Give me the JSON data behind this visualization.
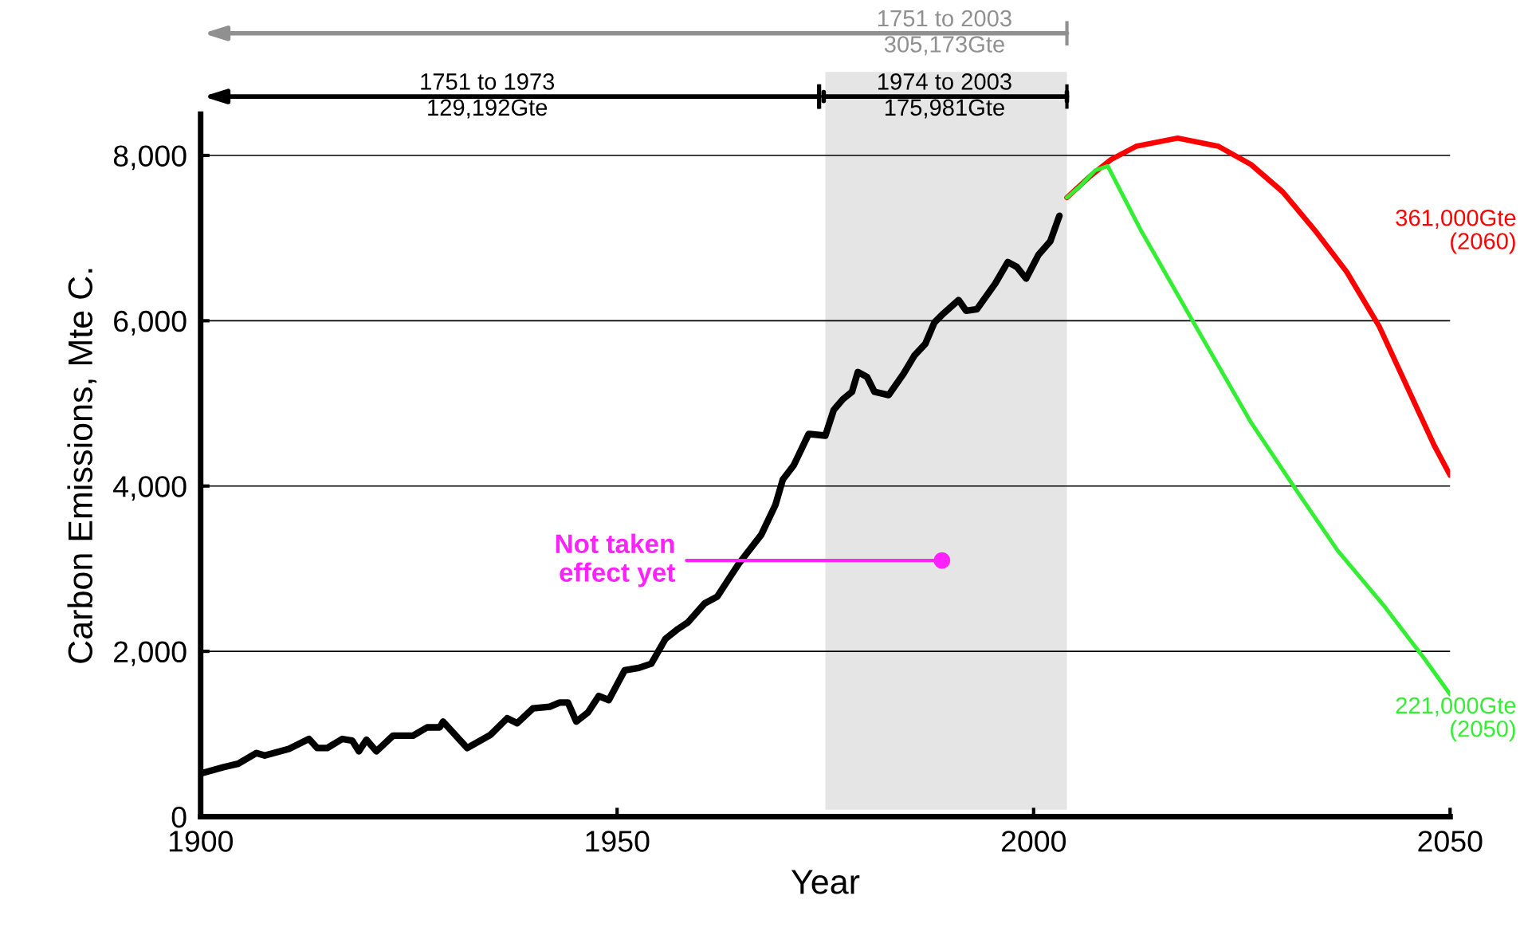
{
  "chart_data": {
    "type": "line",
    "xlabel": "Year",
    "ylabel": "Carbon Emissions, Mte C.",
    "xlim": [
      1900,
      2050
    ],
    "xticks": [
      1900,
      1950,
      2000,
      2050
    ],
    "ylim": [
      0,
      8500
    ],
    "yticks": [
      0,
      {
        "value": 2000,
        "label": "2,000"
      },
      {
        "value": 4000,
        "label": "4,000"
      },
      {
        "value": 6000,
        "label": "6,000"
      },
      {
        "value": 8000,
        "label": "8,000"
      }
    ],
    "grid": "y",
    "legend": false,
    "marker": "none",
    "line_style": "solid",
    "bands": [
      {
        "axis": "x",
        "from": 1975,
        "to": 2004,
        "color": "#e5e5e5"
      }
    ],
    "annotations": [
      "1751 to 2003\n305,173Gte",
      "1751 to 1973\n129,192Gte",
      "1974 to 2003\n175,981Gte",
      {
        "text": "Not taken\neffect yet",
        "x": 1989,
        "y": 3100
      }
    ],
    "series": [
      {
        "color": "#000000",
        "x": [
          1900.3,
          1902.8,
          1904.5,
          1906.7,
          1907.7,
          1910.6,
          1913,
          1914,
          1915.2,
          1917,
          1918.2,
          1919,
          1919.9,
          1921.1,
          1923.1,
          1925.5,
          1927.2,
          1928.7,
          1929.1,
          1932,
          1934.8,
          1936.8,
          1938,
          1939.9,
          1941.9,
          1943.1,
          1944.1,
          1945.1,
          1946.5,
          1947.8,
          1949,
          1950.9,
          1952.6,
          1954.1,
          1955.8,
          1957.3,
          1958.5,
          1960.5,
          1962,
          1964.6,
          1967.3,
          1969,
          1969.9,
          1971.2,
          1973,
          1975,
          1976,
          1977.1,
          1978.2,
          1978.9,
          1980,
          1980.9,
          1982.6,
          1984.4,
          1985.7,
          1987,
          1988.1,
          1989.2,
          1991,
          1991.9,
          1993.2,
          1995.4,
          1996.9,
          1998,
          1999.1,
          2000.6,
          2002,
          2003.1
        ],
        "values": [
          530,
          600,
          640,
          770,
          740,
          820,
          940,
          830,
          830,
          940,
          920,
          790,
          930,
          790,
          980,
          980,
          1080,
          1080,
          1150,
          830,
          990,
          1190,
          1130,
          1310,
          1330,
          1380,
          1380,
          1150,
          1260,
          1460,
          1410,
          1770,
          1800,
          1850,
          2150,
          2270,
          2350,
          2580,
          2660,
          3060,
          3410,
          3770,
          4080,
          4250,
          4630,
          4610,
          4920,
          5050,
          5140,
          5380,
          5320,
          5140,
          5100,
          5360,
          5580,
          5720,
          5980,
          6090,
          6250,
          6120,
          6140,
          6450,
          6710,
          6650,
          6510,
          6800,
          6960,
          7270
        ]
      },
      {
        "name": "361,000Gte\n(2060)",
        "color": "#ff0000",
        "x": [
          2004,
          2006.8,
          2009.3,
          2012.3,
          2017.3,
          2022.2,
          2026.1,
          2029.9,
          2033.8,
          2037.6,
          2041.5,
          2045.3,
          2048.1,
          2050
        ],
        "values": [
          7490,
          7750,
          7950,
          8110,
          8210,
          8110,
          7890,
          7560,
          7090,
          6590,
          5930,
          5100,
          4490,
          4130
        ]
      },
      {
        "name": "221,000Gte\n(2050)",
        "color": "#33ee33",
        "x": [
          2004,
          2005.7,
          2007.4,
          2008.9,
          2012.9,
          2019.2,
          2026.1,
          2031.6,
          2036.5,
          2042,
          2047,
          2050
        ],
        "values": [
          7490,
          7640,
          7820,
          7870,
          7090,
          5980,
          4770,
          3940,
          3220,
          2560,
          1900,
          1480
        ]
      }
    ]
  }
}
